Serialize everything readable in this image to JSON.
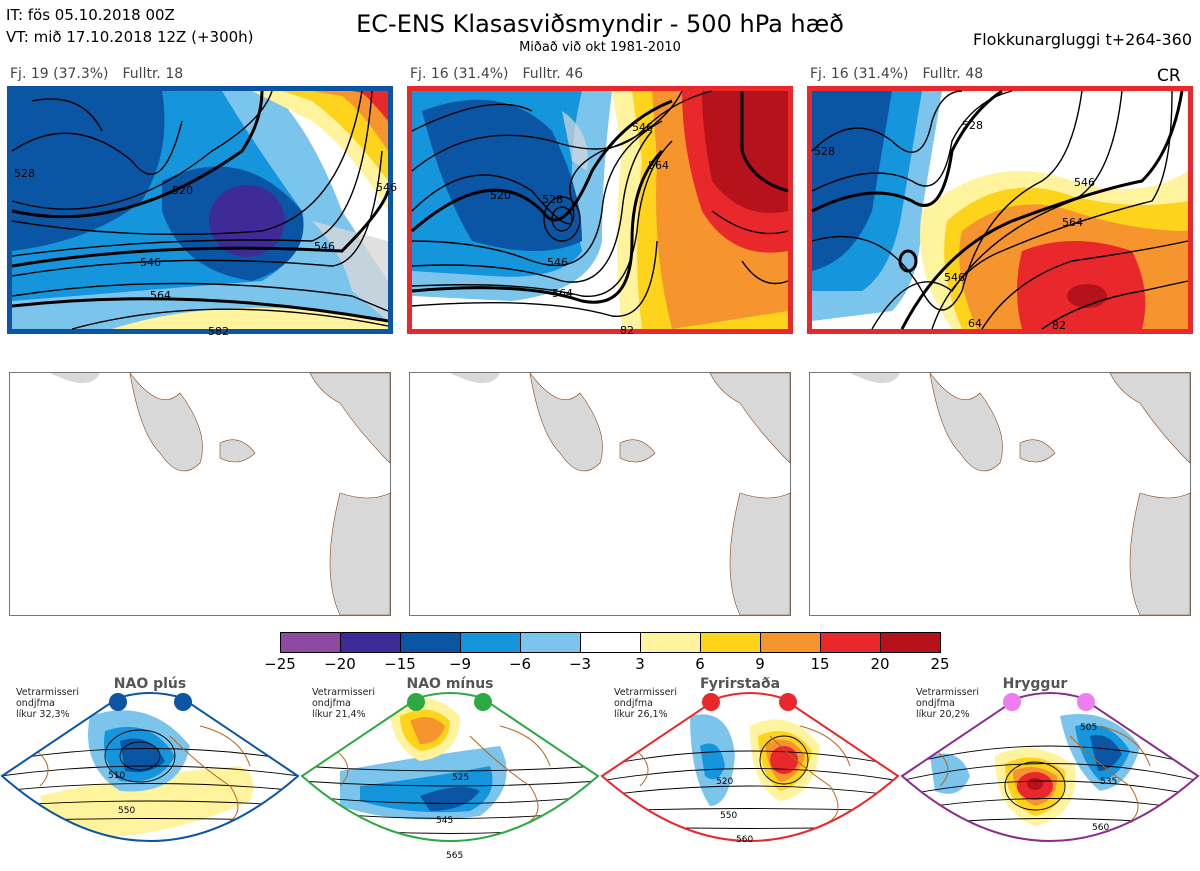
{
  "header": {
    "it_line": "IT: fös 05.10.2018 00Z",
    "vt_line": "VT: mið 17.10.2018 12Z  (+300h)",
    "title": "EC-ENS Klasasviðsmyndir - 500 hPa hæð",
    "subtitle": "Miðað við okt 1981-2010",
    "window": "Flokkunargluggi t+264-360",
    "cr": "CR"
  },
  "panels": [
    {
      "count": "Fj. 19 (37.3%)",
      "member": "Fulltr. 18",
      "frame_color": "#0b56a4",
      "contours": [
        "528",
        "520",
        "546",
        "564",
        "546",
        "582",
        "546"
      ]
    },
    {
      "count": "Fj. 16 (31.4%)",
      "member": "Fulltr. 46",
      "frame_color": "#e8282b",
      "contours": [
        "546",
        "564",
        "528",
        "520",
        "546",
        "564",
        "82"
      ]
    },
    {
      "count": "Fj. 16 (31.4%)",
      "member": "Fulltr. 48",
      "frame_color": "#e8282b",
      "contours": [
        "528",
        "528",
        "546",
        "564",
        "546",
        "64",
        "82"
      ]
    }
  ],
  "colorbar": {
    "colors": [
      "#8e4aa0",
      "#3e2b97",
      "#0b56a4",
      "#1595dc",
      "#7bc4ec",
      "#ffffff",
      "#fff39e",
      "#fdd31c",
      "#f6952e",
      "#e8282b",
      "#b5121b"
    ],
    "ticks": [
      "−25",
      "−20",
      "−15",
      "−9",
      "−6",
      "−3",
      "3",
      "6",
      "9",
      "15",
      "20",
      "25"
    ]
  },
  "regimes": [
    {
      "title": "NAO plús",
      "note_lines": [
        "Vetrarmisseri",
        "ondjfma",
        "líkur 32,3%"
      ],
      "frame_color": "#0b56a4",
      "dot_color": "#0b56a4",
      "contours": [
        "510",
        "550"
      ]
    },
    {
      "title": "NAO mínus",
      "note_lines": [
        "Vetrarmisseri",
        "ondjfma",
        "líkur 21,4%"
      ],
      "frame_color": "#2ea843",
      "dot_color": "#2ea843",
      "contours": [
        "525",
        "545",
        "565"
      ]
    },
    {
      "title": "Fyrirstaða",
      "note_lines": [
        "Vetrarmisseri",
        "ondjfma",
        "líkur 26,1%"
      ],
      "frame_color": "#e8282b",
      "dot_color": "#e8282b",
      "contours": [
        "520",
        "550",
        "560"
      ]
    },
    {
      "title": "Hryggur",
      "note_lines": [
        "Vetrarmisseri",
        "ondjfma",
        "líkur 20,2%"
      ],
      "frame_color": "#8b2d8e",
      "dot_color": "#ee7ded",
      "contours": [
        "505",
        "535",
        "560"
      ]
    }
  ]
}
